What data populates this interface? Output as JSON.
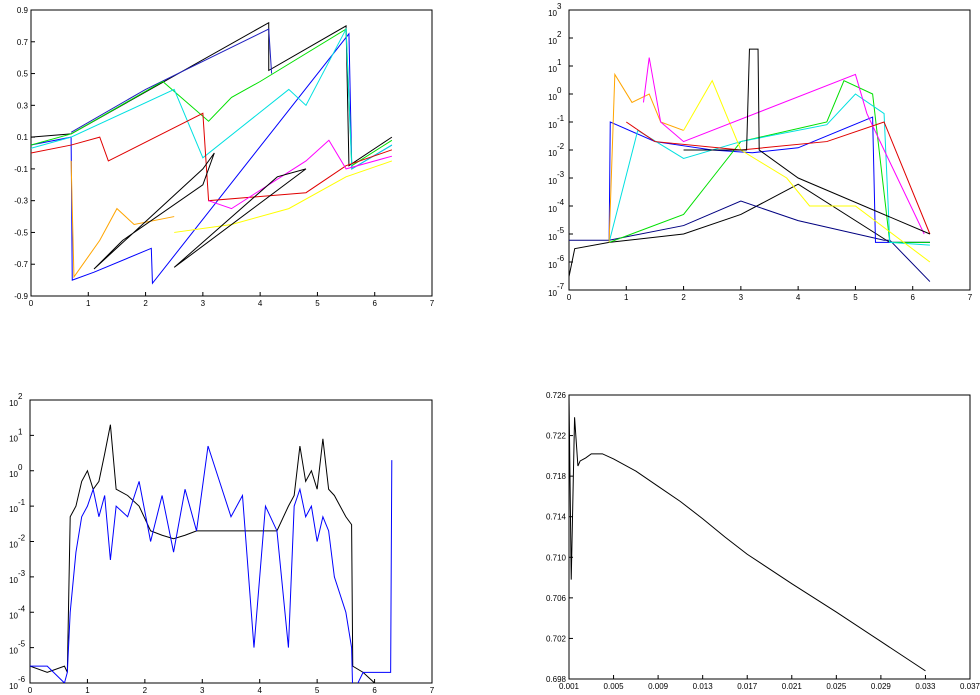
{
  "chart_data": [
    {
      "type": "line",
      "log_y": false,
      "xlim": [
        0,
        7
      ],
      "xticks": [
        0,
        1,
        2,
        3,
        4,
        5,
        6,
        7
      ],
      "ylim": [
        -0.9,
        0.9
      ],
      "yticks": [
        -0.9,
        -0.7,
        -0.5,
        -0.3,
        -0.1,
        0.1,
        0.3,
        0.5,
        0.7,
        0.9
      ],
      "series": [
        {
          "color": "#000000",
          "x": [
            0,
            0.7,
            4.15,
            4.15,
            5.5,
            5.55,
            6.3
          ],
          "values": [
            0.1,
            0.12,
            0.82,
            0.52,
            0.8,
            -0.08,
            0.1
          ]
        },
        {
          "color": "#0000ff",
          "x": [
            0,
            0.7,
            0.72,
            1.1,
            2.1,
            2.12,
            5.55,
            5.6,
            6.3
          ],
          "values": [
            0.05,
            0.1,
            -0.8,
            -0.75,
            -0.6,
            -0.82,
            0.75,
            -0.1,
            0.05
          ]
        },
        {
          "color": "#2020c0",
          "x": [
            0.7,
            2.0,
            4.15,
            4.2
          ],
          "values": [
            0.13,
            0.4,
            0.78,
            0.5
          ]
        },
        {
          "color": "#00e000",
          "x": [
            0,
            0.7,
            2.3,
            3.1,
            3.5,
            4.0,
            5.5,
            5.6,
            6.3
          ],
          "values": [
            0.05,
            0.12,
            0.45,
            0.2,
            0.35,
            0.45,
            0.78,
            -0.08,
            0.08
          ]
        },
        {
          "color": "#00e0e0",
          "x": [
            0,
            0.7,
            2.5,
            3.0,
            4.5,
            4.8,
            5.5,
            5.6,
            6.3
          ],
          "values": [
            0.03,
            0.1,
            0.4,
            -0.03,
            0.4,
            0.3,
            0.78,
            -0.1,
            0.05
          ]
        },
        {
          "color": "#e00000",
          "x": [
            0,
            0.7,
            1.2,
            1.35,
            3.0,
            3.1,
            4.8,
            5.5,
            6.3
          ],
          "values": [
            0,
            0.05,
            0.1,
            -0.05,
            0.25,
            -0.3,
            -0.25,
            -0.08,
            0.02
          ]
        },
        {
          "color": "#ff00ff",
          "x": [
            3.1,
            3.5,
            4.8,
            5.2,
            5.5,
            6.3
          ],
          "values": [
            -0.3,
            -0.35,
            -0.05,
            0.08,
            -0.1,
            -0.02
          ]
        },
        {
          "color": "#ffa500",
          "x": [
            0.7,
            0.75,
            1.2,
            1.5,
            1.8,
            2.5
          ],
          "values": [
            -0.05,
            -0.78,
            -0.55,
            -0.35,
            -0.45,
            -0.4
          ]
        },
        {
          "color": "#ffff00",
          "x": [
            2.5,
            3.5,
            4.5,
            5.5,
            6.3
          ],
          "values": [
            -0.5,
            -0.45,
            -0.35,
            -0.15,
            -0.05
          ]
        },
        {
          "color": "#000000",
          "x": [
            1.1,
            3.0,
            3.2,
            3.0,
            1.6,
            1.1
          ],
          "values": [
            -0.73,
            -0.1,
            0.0,
            -0.2,
            -0.55,
            -0.73
          ]
        },
        {
          "color": "#000000",
          "x": [
            2.5,
            4.8,
            4.3,
            2.5
          ],
          "values": [
            -0.72,
            -0.1,
            -0.15,
            -0.72
          ]
        }
      ]
    },
    {
      "type": "line",
      "log_y": true,
      "xlim": [
        0,
        7
      ],
      "xticks": [
        0,
        1,
        2,
        3,
        4,
        5,
        6,
        7
      ],
      "ylim": [
        1e-07,
        1000
      ],
      "yticks": [
        {
          "value": 1e-07,
          "label": "10",
          "sup": "-7"
        },
        {
          "value": 1e-06,
          "label": "10",
          "sup": "-6"
        },
        {
          "value": 1e-05,
          "label": "10",
          "sup": "-5"
        },
        {
          "value": 0.0001,
          "label": "10",
          "sup": "-4"
        },
        {
          "value": 0.001,
          "label": "10",
          "sup": "-3"
        },
        {
          "value": 0.01,
          "label": "10",
          "sup": "-2"
        },
        {
          "value": 0.1,
          "label": "10",
          "sup": "-1"
        },
        {
          "value": 1,
          "label": "10",
          "sup": "0"
        },
        {
          "value": 10,
          "label": "10",
          "sup": "1"
        },
        {
          "value": 100,
          "label": "10",
          "sup": "2"
        },
        {
          "value": 1000,
          "label": "10",
          "sup": "3"
        }
      ],
      "series": [
        {
          "color": "#000000",
          "x": [
            0,
            0.1,
            0.7,
            2,
            3,
            4,
            5.6,
            6.3
          ],
          "values": [
            3e-07,
            3e-06,
            5e-06,
            1e-05,
            5e-05,
            0.0006,
            5e-06,
            5e-06
          ]
        },
        {
          "color": "#000080",
          "x": [
            0,
            0.7,
            2,
            3,
            4,
            5.5,
            5.6,
            6.3
          ],
          "values": [
            6e-06,
            6e-06,
            2e-05,
            0.00015,
            3e-05,
            6e-06,
            6e-06,
            2e-07
          ]
        },
        {
          "color": "#0000ff",
          "x": [
            0.7,
            0.72,
            1.5,
            2.5,
            3.2,
            4,
            5.3,
            5.35,
            6.3
          ],
          "values": [
            5e-06,
            0.1,
            0.02,
            0.01,
            0.008,
            0.012,
            0.15,
            5e-06,
            5e-06
          ]
        },
        {
          "color": "#00e000",
          "x": [
            0.7,
            2,
            2.5,
            3,
            4.5,
            4.8,
            5.3,
            5.6,
            6.3
          ],
          "values": [
            5e-06,
            5e-05,
            0.001,
            0.02,
            0.1,
            3,
            1,
            5e-06,
            5e-06
          ]
        },
        {
          "color": "#00e0e0",
          "x": [
            0.7,
            1.2,
            2,
            3,
            4.5,
            5,
            5.5,
            5.6,
            6.3
          ],
          "values": [
            5e-06,
            0.05,
            0.005,
            0.02,
            0.08,
            1,
            0.2,
            5e-06,
            4e-06
          ]
        },
        {
          "color": "#ffa500",
          "x": [
            0.7,
            0.8,
            1.1,
            1.4,
            1.6,
            2
          ],
          "values": [
            5e-06,
            5,
            0.5,
            1,
            0.1,
            0.05
          ]
        },
        {
          "color": "#ffff00",
          "x": [
            2,
            2.5,
            3,
            3.8,
            4.2,
            5,
            6.3
          ],
          "values": [
            0.05,
            3,
            0.01,
            0.001,
            0.0001,
            0.0001,
            1e-06
          ]
        },
        {
          "color": "#ff00ff",
          "x": [
            1.3,
            1.4,
            1.6,
            2,
            5,
            5.2,
            5.5,
            6.2
          ],
          "values": [
            0.5,
            20,
            0.1,
            0.02,
            5,
            0.2,
            0.01,
            1e-05
          ]
        },
        {
          "color": "#e00000",
          "x": [
            1,
            1.5,
            3,
            4.5,
            5.5,
            6.3
          ],
          "values": [
            0.1,
            0.02,
            0.01,
            0.02,
            0.1,
            1e-05
          ]
        },
        {
          "color": "#000000",
          "x": [
            2,
            3.1,
            3.15,
            3.3,
            3.32,
            4,
            6.3
          ],
          "values": [
            0.01,
            0.01,
            40,
            40,
            0.01,
            0.001,
            1e-05
          ]
        }
      ]
    },
    {
      "type": "line",
      "log_y": true,
      "xlim": [
        0,
        7
      ],
      "xticks": [
        0,
        1,
        2,
        3,
        4,
        5,
        6,
        7
      ],
      "ylim": [
        1e-06,
        100
      ],
      "yticks": [
        {
          "value": 1e-06,
          "label": "10",
          "sup": "-6"
        },
        {
          "value": 1e-05,
          "label": "10",
          "sup": "-5"
        },
        {
          "value": 0.0001,
          "label": "10",
          "sup": "-4"
        },
        {
          "value": 0.001,
          "label": "10",
          "sup": "-3"
        },
        {
          "value": 0.01,
          "label": "10",
          "sup": "-2"
        },
        {
          "value": 0.1,
          "label": "10",
          "sup": "-1"
        },
        {
          "value": 1,
          "label": "10",
          "sup": "0"
        },
        {
          "value": 10,
          "label": "10",
          "sup": "1"
        },
        {
          "value": 100,
          "label": "10",
          "sup": "2"
        }
      ],
      "series": [
        {
          "color": "#000000",
          "x": [
            0,
            0.3,
            0.6,
            0.65,
            0.7,
            0.8,
            0.9,
            1.0,
            1.1,
            1.2,
            1.3,
            1.4,
            1.5,
            1.7,
            1.9,
            2.1,
            2.3,
            2.5,
            2.7,
            2.9,
            3.1,
            3.3,
            3.5,
            3.7,
            3.9,
            4.1,
            4.3,
            4.5,
            4.6,
            4.7,
            4.8,
            4.9,
            5.0,
            5.1,
            5.2,
            5.3,
            5.5,
            5.6,
            5.62,
            5.8,
            6.0,
            6.3
          ],
          "values": [
            3e-06,
            2e-06,
            3e-06,
            2e-06,
            0.05,
            0.1,
            0.5,
            1,
            0.3,
            0.5,
            3,
            20,
            0.3,
            0.2,
            0.1,
            0.02,
            0.015,
            0.012,
            0.015,
            0.02,
            0.02,
            0.02,
            0.02,
            0.02,
            0.02,
            0.02,
            0.02,
            0.1,
            0.2,
            5,
            0.5,
            1,
            0.3,
            8,
            0.3,
            0.2,
            0.05,
            0.03,
            3e-06,
            2e-06,
            1e-06,
            6e-07
          ]
        },
        {
          "color": "#0000ff",
          "x": [
            0,
            0.3,
            0.6,
            0.65,
            0.7,
            0.8,
            0.9,
            1.0,
            1.1,
            1.2,
            1.3,
            1.4,
            1.5,
            1.7,
            1.9,
            2.1,
            2.3,
            2.5,
            2.7,
            2.9,
            3.1,
            3.3,
            3.5,
            3.7,
            3.9,
            4.1,
            4.3,
            4.5,
            4.6,
            4.7,
            4.8,
            4.9,
            5.0,
            5.1,
            5.2,
            5.3,
            5.5,
            5.6,
            5.62,
            5.8,
            6.28,
            6.3
          ],
          "values": [
            3e-06,
            3e-06,
            1e-06,
            2e-06,
            0.0001,
            0.005,
            0.05,
            0.1,
            0.3,
            0.05,
            0.2,
            0.003,
            0.1,
            0.05,
            0.5,
            0.01,
            0.2,
            0.005,
            0.3,
            0.02,
            5,
            0.5,
            0.05,
            0.2,
            1e-05,
            0.1,
            0.02,
            1e-05,
            0.1,
            0.3,
            0.05,
            0.1,
            0.01,
            0.05,
            0.02,
            0.001,
            0.0001,
            1e-05,
            5e-07,
            2e-06,
            2e-06,
            2
          ]
        }
      ]
    },
    {
      "type": "line",
      "log_y": false,
      "xlim": [
        0.001,
        0.037
      ],
      "xticks": [
        0.001,
        0.005,
        0.009,
        0.013,
        0.017,
        0.021,
        0.025,
        0.029,
        0.033,
        0.037
      ],
      "ylim": [
        0.698,
        0.726
      ],
      "yticks": [
        0.698,
        0.702,
        0.706,
        {
          "value": 0.71,
          "label": "0.710"
        },
        0.714,
        0.718,
        0.722,
        0.726
      ],
      "series": [
        {
          "color": "#000000",
          "x": [
            0.001,
            0.0012,
            0.0015,
            0.0018,
            0.002,
            0.0025,
            0.003,
            0.004,
            0.005,
            0.007,
            0.009,
            0.011,
            0.013,
            0.015,
            0.017,
            0.021,
            0.025,
            0.029,
            0.033
          ],
          "values": [
            0.726,
            0.7078,
            0.7238,
            0.719,
            0.7195,
            0.7198,
            0.7202,
            0.7202,
            0.7197,
            0.7185,
            0.717,
            0.7155,
            0.7138,
            0.712,
            0.7103,
            0.7074,
            0.7046,
            0.7017,
            0.6988
          ]
        }
      ]
    }
  ]
}
